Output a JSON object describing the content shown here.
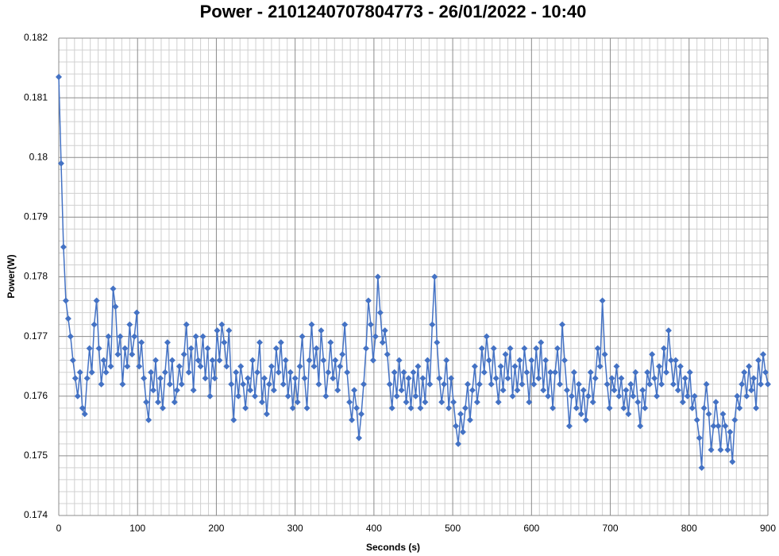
{
  "chart_data": {
    "type": "line",
    "title": "Power - 2101240707804773 - 26/01/2022 - 10:40",
    "x_label": "Seconds (s)",
    "y_label": "Power(W)",
    "xlim": [
      0,
      900
    ],
    "xticks": [
      0,
      100,
      200,
      300,
      400,
      500,
      600,
      700,
      800,
      900
    ],
    "ylim": [
      0.174,
      0.182
    ],
    "yticks": [
      0.174,
      0.175,
      0.176,
      0.177,
      0.178,
      0.179,
      0.18,
      0.181,
      0.182
    ],
    "grid": true,
    "marker": "diamond",
    "x": [
      0,
      3,
      6,
      9,
      12,
      15,
      18,
      21,
      24,
      27,
      30,
      33,
      36,
      39,
      42,
      45,
      48,
      51,
      54,
      57,
      60,
      63,
      66,
      69,
      72,
      75,
      78,
      81,
      84,
      87,
      90,
      93,
      96,
      99,
      102,
      105,
      108,
      111,
      114,
      117,
      120,
      123,
      126,
      129,
      132,
      135,
      138,
      141,
      144,
      147,
      150,
      153,
      156,
      159,
      162,
      165,
      168,
      171,
      174,
      177,
      180,
      183,
      186,
      189,
      192,
      195,
      198,
      201,
      204,
      207,
      210,
      213,
      216,
      219,
      222,
      225,
      228,
      231,
      234,
      237,
      240,
      243,
      246,
      249,
      252,
      255,
      258,
      261,
      264,
      267,
      270,
      273,
      276,
      279,
      282,
      285,
      288,
      291,
      294,
      297,
      300,
      303,
      306,
      309,
      312,
      315,
      318,
      321,
      324,
      327,
      330,
      333,
      336,
      339,
      342,
      345,
      348,
      351,
      354,
      357,
      360,
      363,
      366,
      369,
      372,
      375,
      378,
      381,
      384,
      387,
      390,
      393,
      396,
      399,
      402,
      405,
      408,
      411,
      414,
      417,
      420,
      423,
      426,
      429,
      432,
      435,
      438,
      441,
      444,
      447,
      450,
      453,
      456,
      459,
      462,
      465,
      468,
      471,
      474,
      477,
      480,
      483,
      486,
      489,
      492,
      495,
      498,
      501,
      504,
      507,
      510,
      513,
      516,
      519,
      522,
      525,
      528,
      531,
      534,
      537,
      540,
      543,
      546,
      549,
      552,
      555,
      558,
      561,
      564,
      567,
      570,
      573,
      576,
      579,
      582,
      585,
      588,
      591,
      594,
      597,
      600,
      603,
      606,
      609,
      612,
      615,
      618,
      621,
      624,
      627,
      630,
      633,
      636,
      639,
      642,
      645,
      648,
      651,
      654,
      657,
      660,
      663,
      666,
      669,
      672,
      675,
      678,
      681,
      684,
      687,
      690,
      693,
      696,
      699,
      702,
      705,
      708,
      711,
      714,
      717,
      720,
      723,
      726,
      729,
      732,
      735,
      738,
      741,
      744,
      747,
      750,
      753,
      756,
      759,
      762,
      765,
      768,
      771,
      774,
      777,
      780,
      783,
      786,
      789,
      792,
      795,
      798,
      801,
      804,
      807,
      810,
      813,
      816,
      819,
      822,
      825,
      828,
      831,
      834,
      837,
      840,
      843,
      846,
      849,
      852,
      855,
      858,
      861,
      864,
      867,
      870,
      873,
      876,
      879,
      882,
      885,
      888,
      891,
      894,
      897,
      900
    ],
    "series": [
      {
        "color": "#4472c4",
        "values": [
          0.18135,
          0.1799,
          0.1785,
          0.1776,
          0.1773,
          0.177,
          0.1766,
          0.1763,
          0.176,
          0.1764,
          0.1758,
          0.1757,
          0.1763,
          0.1768,
          0.1764,
          0.1772,
          0.1776,
          0.1768,
          0.1762,
          0.1766,
          0.1764,
          0.177,
          0.1765,
          0.1778,
          0.1775,
          0.1767,
          0.177,
          0.1762,
          0.1768,
          0.1765,
          0.1772,
          0.1767,
          0.177,
          0.1774,
          0.1765,
          0.1769,
          0.1763,
          0.1759,
          0.1756,
          0.1764,
          0.1761,
          0.1766,
          0.1759,
          0.1763,
          0.1758,
          0.1764,
          0.1769,
          0.1762,
          0.1766,
          0.1759,
          0.1761,
          0.1765,
          0.1762,
          0.1767,
          0.1772,
          0.1764,
          0.1768,
          0.1761,
          0.177,
          0.1766,
          0.1765,
          0.177,
          0.1763,
          0.1768,
          0.176,
          0.1766,
          0.1763,
          0.1771,
          0.1766,
          0.1772,
          0.1769,
          0.1765,
          0.1771,
          0.1762,
          0.1756,
          0.1764,
          0.176,
          0.1765,
          0.1762,
          0.1758,
          0.1763,
          0.1761,
          0.1766,
          0.176,
          0.1764,
          0.1769,
          0.1759,
          0.1763,
          0.1757,
          0.1762,
          0.1765,
          0.1761,
          0.1768,
          0.1764,
          0.1769,
          0.1762,
          0.1766,
          0.176,
          0.1764,
          0.1758,
          0.1763,
          0.1759,
          0.1765,
          0.177,
          0.1763,
          0.1758,
          0.1766,
          0.1772,
          0.1765,
          0.1768,
          0.1762,
          0.1771,
          0.1766,
          0.176,
          0.1764,
          0.1769,
          0.1763,
          0.1766,
          0.1761,
          0.1765,
          0.1767,
          0.1772,
          0.1764,
          0.1759,
          0.1756,
          0.1761,
          0.1758,
          0.1753,
          0.1757,
          0.1762,
          0.1768,
          0.1776,
          0.1772,
          0.1766,
          0.177,
          0.178,
          0.1774,
          0.1769,
          0.1771,
          0.1767,
          0.1762,
          0.1758,
          0.1764,
          0.176,
          0.1766,
          0.1761,
          0.1764,
          0.1759,
          0.1763,
          0.1758,
          0.1764,
          0.176,
          0.1765,
          0.1758,
          0.1763,
          0.1759,
          0.1766,
          0.1762,
          0.1772,
          0.178,
          0.1769,
          0.1763,
          0.1759,
          0.1762,
          0.1766,
          0.1758,
          0.1763,
          0.1759,
          0.1755,
          0.1752,
          0.1757,
          0.1754,
          0.1758,
          0.1762,
          0.1756,
          0.1761,
          0.1765,
          0.1759,
          0.1762,
          0.1768,
          0.1764,
          0.177,
          0.1766,
          0.1762,
          0.1768,
          0.1763,
          0.1759,
          0.1765,
          0.1761,
          0.1767,
          0.1763,
          0.1768,
          0.176,
          0.1765,
          0.1761,
          0.1766,
          0.1762,
          0.1768,
          0.1764,
          0.1759,
          0.1766,
          0.1762,
          0.1768,
          0.1763,
          0.1769,
          0.1761,
          0.1766,
          0.176,
          0.1764,
          0.1758,
          0.1764,
          0.1768,
          0.1762,
          0.1772,
          0.1766,
          0.1761,
          0.1755,
          0.176,
          0.1764,
          0.1758,
          0.1762,
          0.1757,
          0.1761,
          0.1756,
          0.176,
          0.1764,
          0.1759,
          0.1763,
          0.1768,
          0.1765,
          0.1776,
          0.1767,
          0.1762,
          0.1758,
          0.1763,
          0.1761,
          0.1765,
          0.176,
          0.1763,
          0.1758,
          0.1761,
          0.1757,
          0.1762,
          0.176,
          0.1764,
          0.1759,
          0.1755,
          0.1761,
          0.1758,
          0.1764,
          0.1762,
          0.1767,
          0.1763,
          0.176,
          0.1765,
          0.1762,
          0.1768,
          0.1764,
          0.1771,
          0.1766,
          0.1762,
          0.1766,
          0.1761,
          0.1765,
          0.1759,
          0.1763,
          0.176,
          0.1764,
          0.1758,
          0.176,
          0.1756,
          0.1753,
          0.1748,
          0.1758,
          0.1762,
          0.1757,
          0.1751,
          0.1755,
          0.1759,
          0.1755,
          0.1751,
          0.1757,
          0.1755,
          0.1751,
          0.1754,
          0.1749,
          0.1756,
          0.176,
          0.1758,
          0.1762,
          0.1764,
          0.176,
          0.1765,
          0.1761,
          0.1763,
          0.1758,
          0.1766,
          0.1762,
          0.1767,
          0.1764,
          0.1762
        ]
      }
    ]
  }
}
